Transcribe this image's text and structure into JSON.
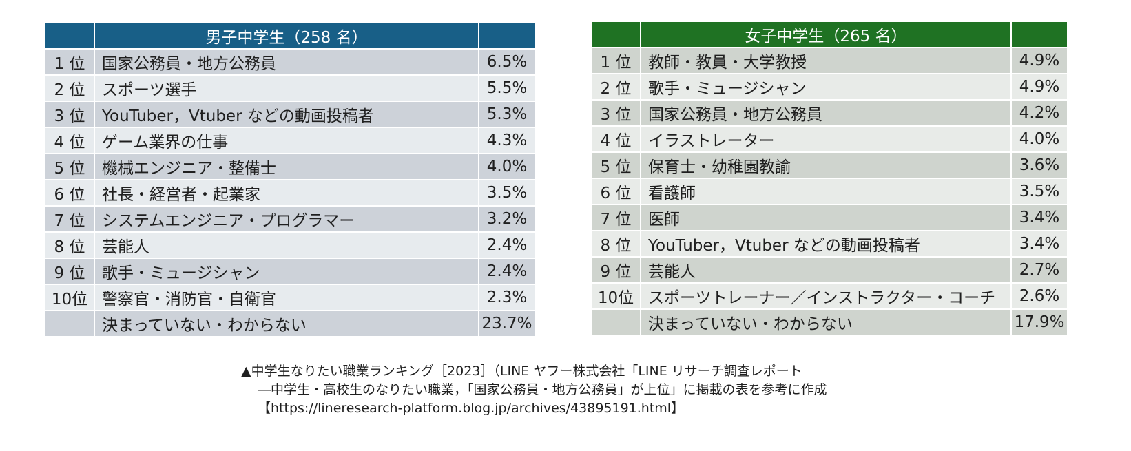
{
  "boys": {
    "title": "男子中学生（258 名）",
    "rows": [
      {
        "rank": "1 位",
        "job": "国家公務員・地方公務員",
        "pct": "6.5%"
      },
      {
        "rank": "2 位",
        "job": "スポーツ選手",
        "pct": "5.5%"
      },
      {
        "rank": "3 位",
        "job": "YouTuber，Vtuber などの動画投稿者",
        "pct": "5.3%"
      },
      {
        "rank": "4 位",
        "job": "ゲーム業界の仕事",
        "pct": "4.3%"
      },
      {
        "rank": "5 位",
        "job": "機械エンジニア・整備士",
        "pct": "4.0%"
      },
      {
        "rank": "6 位",
        "job": "社長・経営者・起業家",
        "pct": "3.5%"
      },
      {
        "rank": "7 位",
        "job": "システムエンジニア・プログラマー",
        "pct": "3.2%"
      },
      {
        "rank": "8 位",
        "job": "芸能人",
        "pct": "2.4%"
      },
      {
        "rank": "9 位",
        "job": "歌手・ミュージシャン",
        "pct": "2.4%"
      },
      {
        "rank": "10位",
        "job": "警察官・消防官・自衛官",
        "pct": "2.3%"
      },
      {
        "rank": "",
        "job": "決まっていない・わからない",
        "pct": "23.7%"
      }
    ]
  },
  "girls": {
    "title": "女子中学生（265 名）",
    "rows": [
      {
        "rank": "1 位",
        "job": "教師・教員・大学教授",
        "pct": "4.9%"
      },
      {
        "rank": "2 位",
        "job": "歌手・ミュージシャン",
        "pct": "4.9%"
      },
      {
        "rank": "3 位",
        "job": "国家公務員・地方公務員",
        "pct": "4.2%"
      },
      {
        "rank": "4 位",
        "job": "イラストレーター",
        "pct": "4.0%"
      },
      {
        "rank": "5 位",
        "job": "保育士・幼稚園教諭",
        "pct": "3.6%"
      },
      {
        "rank": "6 位",
        "job": "看護師",
        "pct": "3.5%"
      },
      {
        "rank": "7 位",
        "job": "医師",
        "pct": "3.4%"
      },
      {
        "rank": "8 位",
        "job": "YouTuber，Vtuber などの動画投稿者",
        "pct": "3.4%"
      },
      {
        "rank": "9 位",
        "job": "芸能人",
        "pct": "2.7%"
      },
      {
        "rank": "10位",
        "job": "スポーツトレーナー／インストラクター・コーチ",
        "pct": "2.6%"
      },
      {
        "rank": "",
        "job": "決まっていない・わからない",
        "pct": "17.9%"
      }
    ]
  },
  "caption": {
    "line1": "▲中学生なりたい職業ランキング［2023］（LINE ヤフー株式会社「LINE リサーチ調査レポート",
    "line2": "―中学生・高校生のなりたい職業，「国家公務員・地方公務員」が上位」に掲載の表を参考に作成",
    "line3": "【https://lineresearch-platform.blog.jp/archives/43895191.html】"
  },
  "colors": {
    "boys_header": "#185f87",
    "girls_header": "#1f7223"
  }
}
